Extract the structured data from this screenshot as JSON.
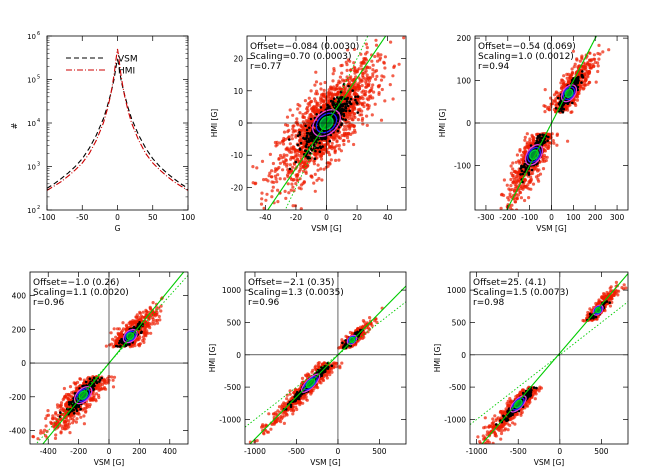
{
  "chart_data": [
    {
      "type": "line",
      "title": "",
      "xlabel": "G",
      "ylabel": "#",
      "xlim": [
        -100,
        100
      ],
      "ylim_log10": [
        2,
        6
      ],
      "log_y": true,
      "x_ticks": [
        "-100",
        "-50",
        "0",
        "50",
        "100"
      ],
      "y_ticks": [
        {
          "base": "10",
          "exp": "2",
          "log": 2
        },
        {
          "base": "10",
          "exp": "3",
          "log": 3
        },
        {
          "base": "10",
          "exp": "4",
          "log": 4
        },
        {
          "base": "10",
          "exp": "5",
          "log": 5
        },
        {
          "base": "10",
          "exp": "6",
          "log": 6
        }
      ],
      "legend_position": "top-right",
      "series": [
        {
          "name": "VSM",
          "color": "#000000",
          "dash": "dashed",
          "x": [
            -100,
            -90,
            -80,
            -70,
            -60,
            -50,
            -40,
            -30,
            -20,
            -15,
            -10,
            -7,
            -5,
            -3,
            -1,
            0,
            1,
            3,
            5,
            7,
            10,
            15,
            20,
            30,
            40,
            50,
            60,
            70,
            80,
            90,
            100
          ],
          "y_log10": [
            2.5,
            2.6,
            2.72,
            2.85,
            3.0,
            3.18,
            3.42,
            3.72,
            4.1,
            4.35,
            4.65,
            4.85,
            5.0,
            5.2,
            5.4,
            5.45,
            5.4,
            5.2,
            5.0,
            4.85,
            4.65,
            4.35,
            4.1,
            3.72,
            3.42,
            3.18,
            3.0,
            2.85,
            2.72,
            2.6,
            2.5
          ]
        },
        {
          "name": "HMI",
          "color": "#cc0000",
          "dash": "dashdot",
          "x": [
            -100,
            -90,
            -80,
            -70,
            -60,
            -50,
            -40,
            -30,
            -20,
            -15,
            -10,
            -7,
            -5,
            -3,
            -1,
            0,
            1,
            3,
            5,
            7,
            10,
            15,
            20,
            30,
            40,
            50,
            60,
            70,
            80,
            90,
            100
          ],
          "y_log10": [
            2.45,
            2.55,
            2.65,
            2.78,
            2.92,
            3.08,
            3.3,
            3.6,
            4.0,
            4.28,
            4.62,
            4.9,
            5.1,
            5.35,
            5.6,
            5.7,
            5.6,
            5.35,
            5.1,
            4.9,
            4.62,
            4.28,
            4.0,
            3.6,
            3.3,
            3.08,
            2.92,
            2.78,
            2.65,
            2.55,
            2.45
          ]
        }
      ]
    },
    {
      "type": "scatter",
      "xlabel": "VSM [G]",
      "ylabel": "HMI [G]",
      "xlim": [
        -52,
        52
      ],
      "ylim": [
        -27,
        27
      ],
      "x_ticks": [
        -40,
        -20,
        0,
        20,
        40
      ],
      "y_ticks": [
        -20,
        -10,
        0,
        10,
        20
      ],
      "annotations": [
        "Offset=−0.084 (0.0030)",
        "Scaling=0.70 (0.0003)",
        "r=0.77"
      ],
      "offset": -0.084,
      "scaling": 0.7,
      "clusters": [
        {
          "cx": 0,
          "cy": 0,
          "sx": 16,
          "sy": 9,
          "corr": 0.77,
          "n": 1500
        }
      ]
    },
    {
      "type": "scatter",
      "xlabel": "VSM [G]",
      "ylabel": "HMI [G]",
      "xlim": [
        -350,
        350
      ],
      "ylim": [
        -205,
        205
      ],
      "x_ticks": [
        -300,
        -200,
        -100,
        0,
        100,
        200,
        300
      ],
      "y_ticks": [
        -100,
        0,
        100,
        200
      ],
      "annotations": [
        "Offset=−0.54 (0.069)",
        "Scaling=1.0 (0.0012)",
        "r=0.94"
      ],
      "offset": -0.54,
      "scaling": 1.0,
      "clusters": [
        {
          "cx": 80,
          "cy": 70,
          "sx": 55,
          "sy": 45,
          "corr": 0.85,
          "n": 550,
          "ymin": 25,
          "ymax": 200
        },
        {
          "cx": -80,
          "cy": -75,
          "sx": 60,
          "sy": 55,
          "corr": 0.85,
          "n": 650,
          "ymin": -205,
          "ymax": -25
        }
      ]
    },
    {
      "type": "scatter",
      "xlabel": "VSM [G]",
      "ylabel": "",
      "xlim": [
        -520,
        520
      ],
      "ylim": [
        -480,
        540
      ],
      "x_ticks": [
        -400,
        -200,
        0,
        200,
        400
      ],
      "y_ticks": [
        -400,
        -200,
        0,
        200,
        400
      ],
      "annotations": [
        "Offset=−1.0 (0.26)",
        "Scaling=1.1 (0.0020)",
        "r=0.96"
      ],
      "offset": -1.0,
      "scaling": 1.1,
      "clusters": [
        {
          "cx": 140,
          "cy": 160,
          "sx": 85,
          "sy": 80,
          "corr": 0.85,
          "n": 550,
          "ymin": 95,
          "ymax": 540
        },
        {
          "cx": -170,
          "cy": -190,
          "sx": 110,
          "sy": 110,
          "corr": 0.88,
          "n": 650,
          "ymin": -480,
          "ymax": -80
        }
      ]
    },
    {
      "type": "scatter",
      "xlabel": "VSM [G]",
      "ylabel": "HMI [G]",
      "xlim": [
        -1120,
        820
      ],
      "ylim": [
        -1380,
        1280
      ],
      "x_ticks": [
        -1000,
        -500,
        0,
        500
      ],
      "y_ticks": [
        -1000,
        -500,
        0,
        500,
        1000
      ],
      "annotations": [
        "Offset=−2.1 (0.35)",
        "Scaling=1.3 (0.0035)",
        "r=0.96"
      ],
      "offset": -2.1,
      "scaling": 1.3,
      "clusters": [
        {
          "cx": 170,
          "cy": 230,
          "sx": 110,
          "sy": 140,
          "corr": 0.9,
          "n": 300,
          "ymin": 100,
          "ymax": 1280
        },
        {
          "cx": -330,
          "cy": -440,
          "sx": 240,
          "sy": 320,
          "corr": 0.97,
          "n": 700,
          "ymin": -1380,
          "ymax": -120
        }
      ]
    },
    {
      "type": "scatter",
      "xlabel": "VSM [G]",
      "ylabel": "HMI [G]",
      "xlim": [
        -1080,
        820
      ],
      "ylim": [
        -1380,
        1280
      ],
      "x_ticks": [
        -1000,
        -500,
        0,
        500
      ],
      "y_ticks": [
        -1000,
        -500,
        0,
        500,
        1000
      ],
      "annotations": [
        "Offset=25. (4.1)",
        "Scaling=1.5 (0.0073)",
        "r=0.98"
      ],
      "offset": 25,
      "scaling": 1.5,
      "clusters": [
        {
          "cx": 460,
          "cy": 690,
          "sx": 110,
          "sy": 160,
          "corr": 0.9,
          "n": 300,
          "ymin": 520,
          "ymax": 1280
        },
        {
          "cx": -500,
          "cy": -760,
          "sx": 200,
          "sy": 280,
          "corr": 0.95,
          "n": 600,
          "ymin": -1380,
          "ymax": -500
        }
      ]
    }
  ],
  "colors": {
    "scatter_point": "#ee1c00",
    "density_core": "#000000",
    "contour_outer": "#e040e0",
    "contour_mid": "#2020ff",
    "contour_inner": "#00cc44",
    "fit_line": "#00cc00",
    "axis": "#000000"
  }
}
